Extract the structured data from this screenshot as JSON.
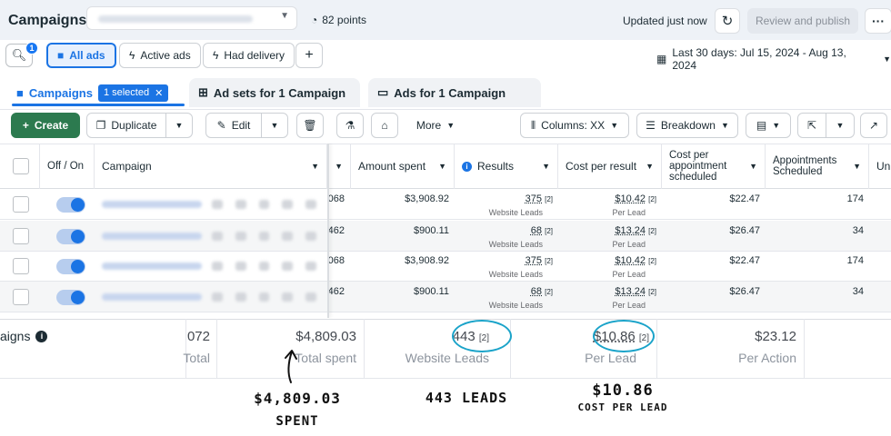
{
  "header": {
    "title": "Campaigns",
    "points": "82 points",
    "updated": "Updated just now",
    "review_publish": "Review and publish"
  },
  "filters": {
    "search_badge": "1",
    "all_ads": "All ads",
    "active_ads": "Active ads",
    "had_delivery": "Had delivery",
    "date_range": "Last 30 days: Jul 15, 2024 - Aug 13, 2024"
  },
  "tabs": {
    "campaigns": "Campaigns",
    "selected": "1 selected",
    "ad_sets": "Ad sets for 1 Campaign",
    "ads": "Ads for 1 Campaign"
  },
  "toolbar": {
    "create": "Create",
    "duplicate": "Duplicate",
    "edit": "Edit",
    "more": "More",
    "columns": "Columns: XX",
    "breakdown": "Breakdown"
  },
  "table": {
    "headers": {
      "off_on": "Off / On",
      "campaign": "Campaign",
      "amount_spent": "Amount spent",
      "results": "Results",
      "cost_per_result": "Cost per result",
      "cost_per_appt": "Cost per appointment scheduled",
      "appointments": "Appointments Scheduled",
      "next": "Un"
    },
    "rows": [
      {
        "hidden": "068",
        "amount": "$3,908.92",
        "results": "375",
        "results_note": "[2]",
        "results_sub": "Website Leads",
        "cpr": "$10.42",
        "cpr_note": "[2]",
        "cpr_sub": "Per Lead",
        "cpa": "$22.47",
        "appts": "174"
      },
      {
        "hidden": "462",
        "amount": "$900.11",
        "results": "68",
        "results_note": "[2]",
        "results_sub": "Website Leads",
        "cpr": "$13.24",
        "cpr_note": "[2]",
        "cpr_sub": "Per Lead",
        "cpa": "$26.47",
        "appts": "34"
      },
      {
        "hidden": "068",
        "amount": "$3,908.92",
        "results": "375",
        "results_note": "[2]",
        "results_sub": "Website Leads",
        "cpr": "$10.42",
        "cpr_note": "[2]",
        "cpr_sub": "Per Lead",
        "cpa": "$22.47",
        "appts": "174"
      },
      {
        "hidden": "462",
        "amount": "$900.11",
        "results": "68",
        "results_note": "[2]",
        "results_sub": "Website Leads",
        "cpr": "$13.24",
        "cpr_note": "[2]",
        "cpr_sub": "Per Lead",
        "cpa": "$26.47",
        "appts": "34"
      }
    ]
  },
  "totals": {
    "label": "aigns",
    "hidden_value": "072",
    "hidden_label": "Total",
    "spent": "$4,809.03",
    "spent_label": "Total spent",
    "leads": "443",
    "leads_note": "[2]",
    "leads_label": "Website Leads",
    "cpl": "$10.86",
    "cpl_note": "[2]",
    "cpl_label": "Per Lead",
    "per_action": "$23.12",
    "per_action_label": "Per Action"
  },
  "annotations": {
    "spent_value": "$4,809.03",
    "spent_word": "SPENT",
    "leads": "443 LEADS",
    "cpl_value": "$10.86",
    "cpl_word": "COST PER LEAD"
  }
}
